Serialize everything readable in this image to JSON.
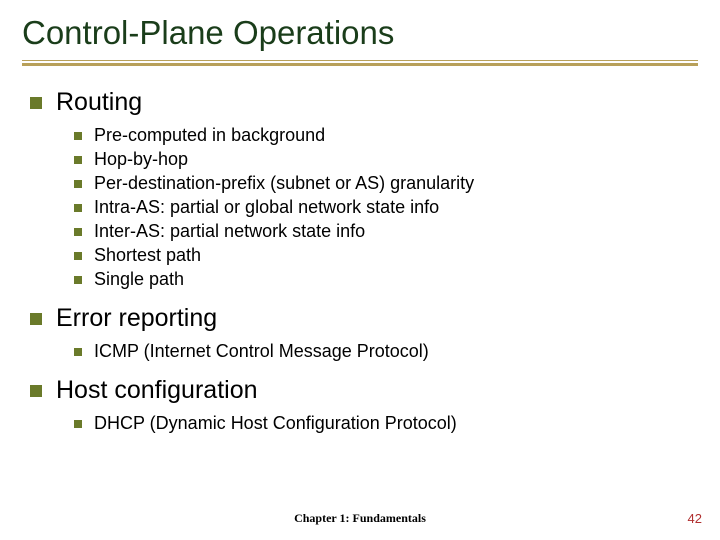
{
  "title": "Control-Plane Operations",
  "sections": [
    {
      "heading": "Routing",
      "items": [
        "Pre-computed in background",
        "Hop-by-hop",
        "Per-destination-prefix (subnet or AS) granularity",
        "Intra-AS: partial or global network state info",
        "Inter-AS: partial network state info",
        "Shortest path",
        "Single path"
      ]
    },
    {
      "heading": "Error reporting",
      "items": [
        "ICMP (Internet Control Message Protocol)"
      ]
    },
    {
      "heading": "Host configuration",
      "items": [
        "DHCP (Dynamic Host Configuration Protocol)"
      ]
    }
  ],
  "footer": {
    "center": "Chapter 1: Fundamentals",
    "page": "42"
  },
  "style": {
    "title_color": "#1a3d1a",
    "title_fontsize": 33,
    "rule_color": "#b8a05a",
    "bullet_color": "#6a7a2a",
    "l1_fontsize": 25,
    "l2_fontsize": 18,
    "page_color": "#b03030",
    "background": "#ffffff"
  }
}
